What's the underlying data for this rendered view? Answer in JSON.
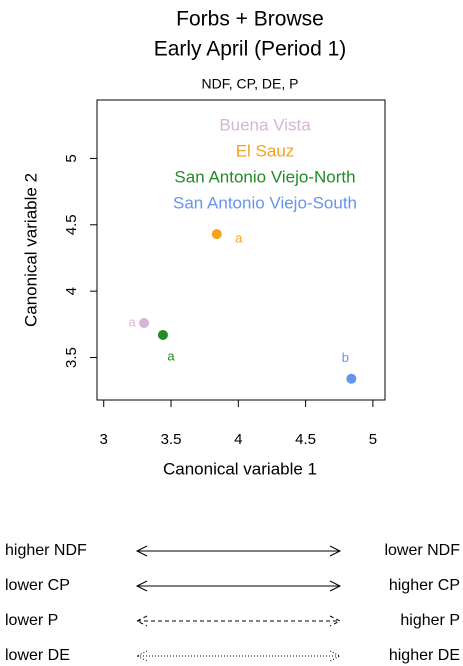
{
  "chart_data": {
    "type": "scatter",
    "title": "Forbs + Browse",
    "subtitle": "Early April (Period 1)",
    "caption": "NDF, CP, DE, P",
    "x_label": "Canonical variable 1",
    "y_label": "Canonical variable 2",
    "xlim": [
      2.95,
      5.09
    ],
    "ylim": [
      3.18,
      5.44
    ],
    "xticks": [
      3.0,
      3.5,
      4.0,
      4.5,
      5.0
    ],
    "yticks": [
      3.5,
      4.0,
      4.5,
      5.0
    ],
    "series": [
      {
        "name": "Buena Vista",
        "color": "#d8b4d8",
        "x": [
          3.3
        ],
        "y": [
          3.76
        ],
        "label": "a"
      },
      {
        "name": "El Sauz",
        "color": "#f5a31a",
        "x": [
          3.84
        ],
        "y": [
          4.43
        ],
        "label": "a"
      },
      {
        "name": "San Antonio Viejo-North",
        "color": "#228b22",
        "x": [
          3.44
        ],
        "y": [
          3.67
        ],
        "label": "a"
      },
      {
        "name": "San Antonio Viejo-South",
        "color": "#6495ed",
        "x": [
          4.84
        ],
        "y": [
          3.34
        ],
        "label": "b"
      }
    ]
  },
  "arrows": [
    {
      "left": "higher NDF",
      "right": "lower NDF",
      "style": "solid"
    },
    {
      "left": "lower CP",
      "right": "higher CP",
      "style": "solid"
    },
    {
      "left": "lower P",
      "right": "higher P",
      "style": "dashed"
    },
    {
      "left": "lower DE",
      "right": "higher DE",
      "style": "dotted"
    }
  ]
}
